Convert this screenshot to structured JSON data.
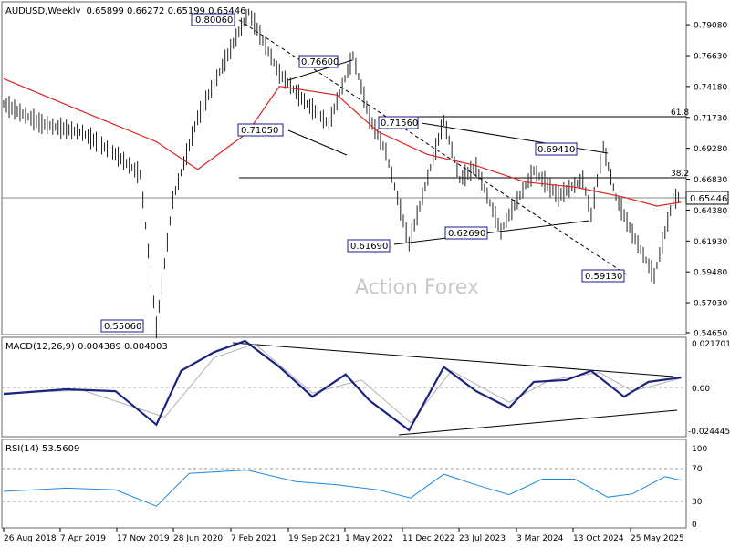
{
  "chart_data": [
    {
      "type": "candlestick",
      "title": "AUDUSD,Weekly",
      "ohlc_label": "0.65899 0.66272 0.65199 0.65446",
      "watermark": "Action Forex",
      "current_price": 0.65446,
      "current_price_label": "0.65446",
      "y_ticks": [
        "0.79080",
        "0.76630",
        "0.74180",
        "0.71730",
        "0.69280",
        "0.66830",
        "0.64380",
        "0.61930",
        "0.59480",
        "0.57030",
        "0.54650"
      ],
      "ylim": [
        0.5465,
        0.8075
      ],
      "fib_levels": [
        {
          "label": "61.8",
          "value": 0.7181
        },
        {
          "label": "38.2",
          "value": 0.6735
        }
      ],
      "price_callouts": [
        "0.80060",
        "0.76600",
        "0.71050",
        "0.71560",
        "0.69410",
        "0.61690",
        "0.62690",
        "0.59130",
        "0.55060"
      ],
      "series": [
        {
          "name": "price",
          "color": "#000000",
          "x": [
            "2018-08-26",
            "2019-01",
            "2019-06",
            "2019-10",
            "2020-01",
            "2020-03-15",
            "2020-05",
            "2020-08",
            "2021-01",
            "2021-02-21",
            "2021-06",
            "2021-09",
            "2021-12",
            "2022-03",
            "2022-05",
            "2022-07",
            "2022-10-09",
            "2023-02",
            "2023-04",
            "2023-06",
            "2023-09",
            "2023-10",
            "2024-01",
            "2024-04",
            "2024-07",
            "2024-08",
            "2024-09-29",
            "2024-11",
            "2025-01",
            "2025-04-06",
            "2025-06",
            "2025-07"
          ],
          "values": [
            0.728,
            0.712,
            0.705,
            0.688,
            0.672,
            0.5506,
            0.652,
            0.717,
            0.785,
            0.8006,
            0.752,
            0.73,
            0.712,
            0.766,
            0.717,
            0.69,
            0.6169,
            0.715,
            0.668,
            0.678,
            0.6269,
            0.64,
            0.675,
            0.655,
            0.668,
            0.64,
            0.6941,
            0.654,
            0.625,
            0.5913,
            0.652,
            0.6545
          ]
        },
        {
          "name": "moving average",
          "color": "#dd2222",
          "x": [
            "2018-08-26",
            "2019-06",
            "2020-03",
            "2020-08",
            "2021-02",
            "2021-06",
            "2022-01",
            "2022-06",
            "2022-12",
            "2023-06",
            "2023-12",
            "2024-06",
            "2024-12",
            "2025-04",
            "2025-07"
          ],
          "values": [
            0.748,
            0.722,
            0.698,
            0.676,
            0.705,
            0.742,
            0.735,
            0.706,
            0.688,
            0.679,
            0.666,
            0.662,
            0.654,
            0.647,
            0.65
          ]
        }
      ],
      "x_ticks": [
        "26 Aug 2018",
        "7 Apr 2019",
        "17 Nov 2019",
        "28 Jun 2020",
        "7 Feb 2021",
        "19 Sep 2021",
        "1 May 2022",
        "11 Dec 2022",
        "23 Jul 2023",
        "3 Mar 2024",
        "13 Oct 2024",
        "25 May 2025"
      ]
    },
    {
      "type": "line",
      "title": "MACD(12,26,9) 0.004389 0.004003",
      "y_ticks": [
        "0.021701",
        "0.00",
        "-0.024445"
      ],
      "ylim": [
        -0.027,
        0.025
      ],
      "series": [
        {
          "name": "MACD",
          "color": "#1a237e",
          "x": [
            "2018-08-26",
            "2019-04",
            "2019-10",
            "2020-03-15",
            "2020-06",
            "2020-10",
            "2021-02-07",
            "2021-06",
            "2021-10",
            "2022-02",
            "2022-05",
            "2022-10-09",
            "2023-02",
            "2023-06",
            "2023-10",
            "2024-01",
            "2024-05",
            "2024-08",
            "2024-12",
            "2025-03",
            "2025-07"
          ],
          "values": [
            -0.0045,
            -0.002,
            -0.003,
            -0.021,
            0.008,
            0.018,
            0.024,
            0.01,
            -0.006,
            0.006,
            -0.008,
            -0.024,
            0.01,
            -0.003,
            -0.012,
            0.002,
            0.003,
            0.008,
            -0.006,
            0.002,
            0.0044
          ]
        },
        {
          "name": "signal",
          "color": "#b0b0b0",
          "x": [
            "2018-08-26",
            "2019-06",
            "2020-04",
            "2020-10",
            "2021-03",
            "2021-10",
            "2022-04",
            "2022-10",
            "2023-03",
            "2023-10",
            "2024-03",
            "2024-09",
            "2025-01",
            "2025-07"
          ],
          "values": [
            -0.004,
            -0.0025,
            -0.017,
            0.015,
            0.0225,
            -0.004,
            0.003,
            -0.02,
            0.008,
            -0.009,
            0.003,
            0.007,
            -0.003,
            0.004
          ]
        }
      ]
    },
    {
      "type": "line",
      "title": "RSI(14) 53.5609",
      "y_ticks": [
        "100",
        "70",
        "30",
        "0"
      ],
      "ylim": [
        0,
        100
      ],
      "series": [
        {
          "name": "RSI",
          "color": "#1e88e5",
          "x": [
            "2018-08-26",
            "2019-04",
            "2019-10",
            "2020-03-15",
            "2020-07",
            "2021-02",
            "2021-08",
            "2022-01",
            "2022-06",
            "2022-10",
            "2023-02",
            "2023-06",
            "2023-10",
            "2024-02",
            "2024-06",
            "2024-10",
            "2025-01",
            "2025-05",
            "2025-07"
          ],
          "values": [
            40,
            44,
            42,
            22,
            62,
            66,
            52,
            48,
            42,
            32,
            61,
            48,
            36,
            55,
            55,
            33,
            37,
            58,
            53.56
          ]
        }
      ]
    }
  ],
  "ui": {
    "panel_border": "#666666",
    "grid_dash": "#999999"
  }
}
